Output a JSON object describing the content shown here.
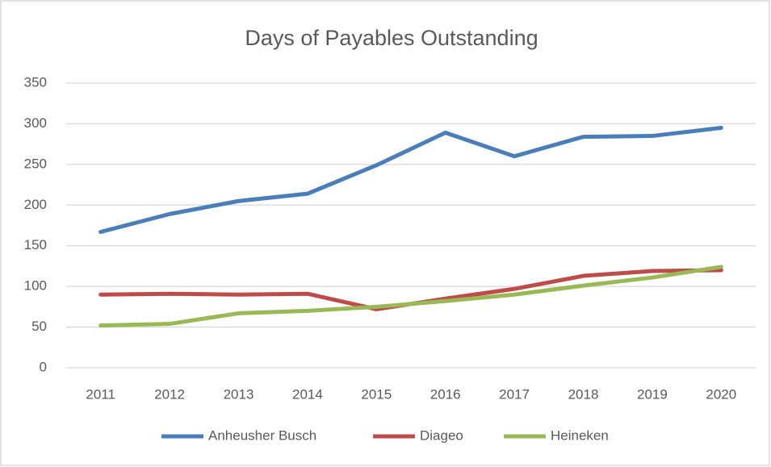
{
  "chart_data": {
    "type": "line",
    "title": "Days of Payables Outstanding",
    "categories": [
      "2011",
      "2012",
      "2013",
      "2014",
      "2015",
      "2016",
      "2017",
      "2018",
      "2019",
      "2020"
    ],
    "series": [
      {
        "name": "Anheusher Busch",
        "color": "#4a7ebb",
        "values": [
          167,
          189,
          205,
          214,
          249,
          289,
          260,
          284,
          285,
          295
        ]
      },
      {
        "name": "Diageo",
        "color": "#be4b48",
        "values": [
          90,
          91,
          90,
          91,
          72,
          85,
          97,
          113,
          119,
          120
        ]
      },
      {
        "name": "Heineken",
        "color": "#98b954",
        "values": [
          52,
          54,
          67,
          70,
          75,
          82,
          90,
          101,
          111,
          124
        ]
      }
    ],
    "ylim": [
      0,
      350
    ],
    "yticks": [
      0,
      50,
      100,
      150,
      200,
      250,
      300,
      350
    ],
    "grid": true,
    "legend": "bottom"
  }
}
